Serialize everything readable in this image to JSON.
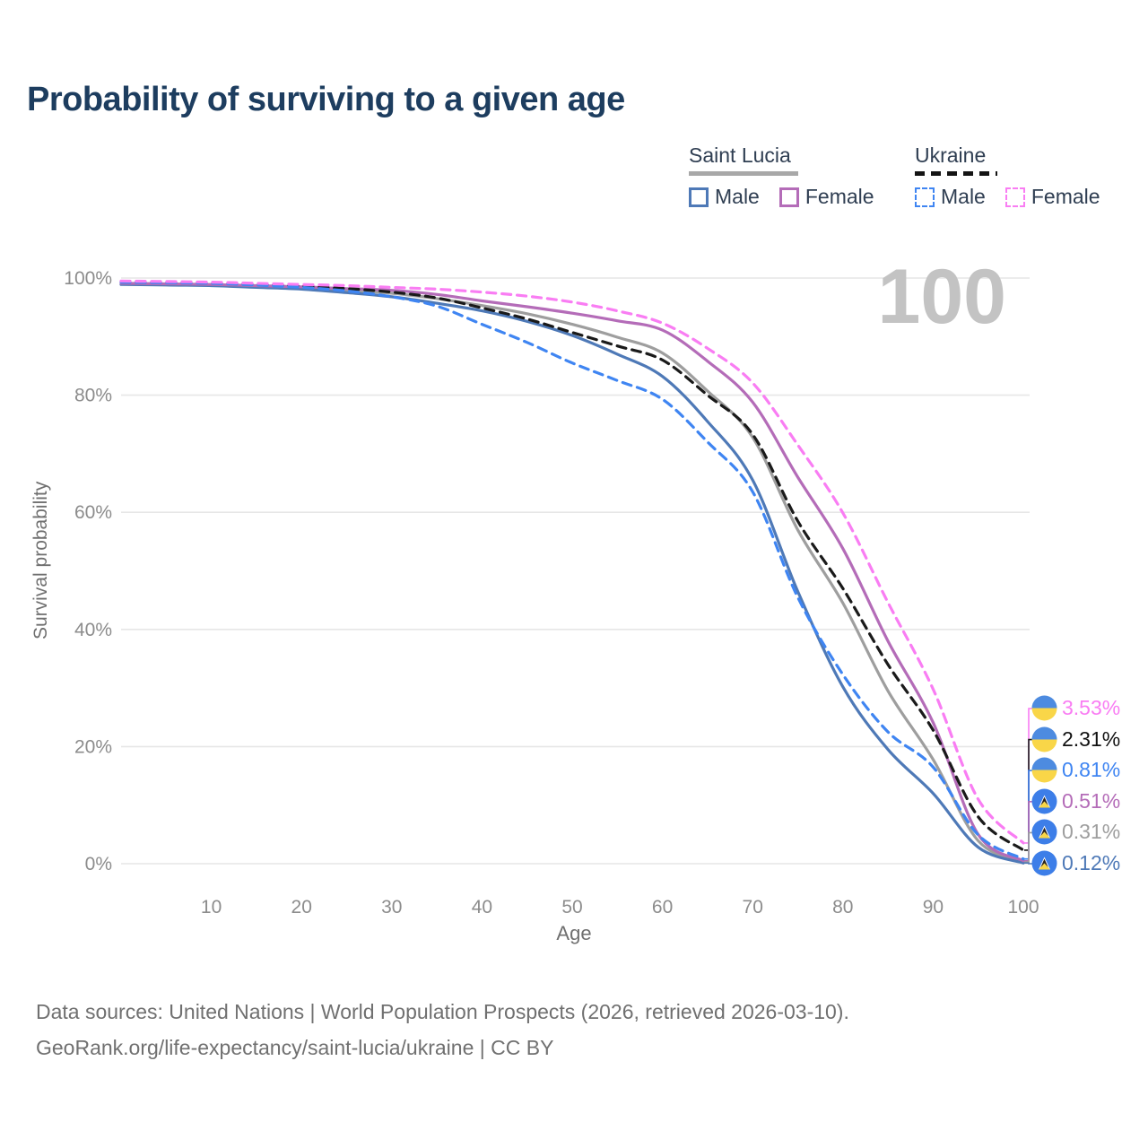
{
  "title": "Probability of surviving to a given age",
  "watermark": "100",
  "legend": {
    "groups": [
      {
        "country": "Saint Lucia",
        "style": "solid",
        "underline_color": "#a8a8a8",
        "items": [
          {
            "label": "Male",
            "color": "#4e79b7"
          },
          {
            "label": "Female",
            "color": "#b46cb8"
          }
        ]
      },
      {
        "country": "Ukraine",
        "style": "dashed",
        "underline_color": "#141414",
        "items": [
          {
            "label": "Male",
            "color": "#3f85f2"
          },
          {
            "label": "Female",
            "color": "#f97df3"
          }
        ]
      }
    ]
  },
  "axes": {
    "x": {
      "label": "Age",
      "ticks": [
        10,
        20,
        30,
        40,
        50,
        60,
        70,
        80,
        90,
        100
      ],
      "range": [
        0,
        100
      ]
    },
    "y": {
      "label": "Survival probability",
      "ticks": [
        {
          "v": 0,
          "label": "0%"
        },
        {
          "v": 20,
          "label": "20%"
        },
        {
          "v": 40,
          "label": "40%"
        },
        {
          "v": 60,
          "label": "60%"
        },
        {
          "v": 80,
          "label": "80%"
        },
        {
          "v": 100,
          "label": "100%"
        }
      ],
      "range": [
        0,
        100
      ]
    }
  },
  "chart_data": {
    "type": "line",
    "title": "Probability of surviving to a given age",
    "xlabel": "Age",
    "ylabel": "Survival probability",
    "xlim": [
      0,
      100
    ],
    "ylim": [
      0,
      100
    ],
    "grid": "horizontal-only",
    "legend_position": "top-right",
    "x": [
      0,
      5,
      10,
      15,
      20,
      25,
      30,
      35,
      40,
      45,
      50,
      55,
      60,
      65,
      70,
      75,
      80,
      85,
      90,
      95,
      100
    ],
    "series": [
      {
        "name": "Saint Lucia — All",
        "country": "Saint Lucia",
        "sex": "all",
        "style": "solid",
        "color": "#9e9e9e",
        "flag": "saint-lucia",
        "end_label": "0.31%",
        "end_value": 0.31,
        "values_pct": [
          99.0,
          98.9,
          98.8,
          98.6,
          98.3,
          97.9,
          97.4,
          96.5,
          95.3,
          93.9,
          92.1,
          89.9,
          87.2,
          80.7,
          72.8,
          57.0,
          44.5,
          29.5,
          17.8,
          3.9,
          0.31
        ]
      },
      {
        "name": "Saint Lucia — Male",
        "country": "Saint Lucia",
        "sex": "male",
        "style": "solid",
        "color": "#4e79b7",
        "flag": "saint-lucia",
        "end_label": "0.12%",
        "end_value": 0.12,
        "values_pct": [
          98.9,
          98.8,
          98.7,
          98.4,
          98.1,
          97.5,
          96.8,
          95.7,
          94.4,
          92.6,
          90.2,
          87.0,
          83.2,
          75.5,
          65.5,
          46.5,
          30.2,
          19.5,
          12.0,
          2.8,
          0.12
        ]
      },
      {
        "name": "Saint Lucia — Female",
        "country": "Saint Lucia",
        "sex": "female",
        "style": "solid",
        "color": "#b46cb8",
        "flag": "saint-lucia",
        "end_label": "0.51%",
        "end_value": 0.51,
        "values_pct": [
          99.1,
          99.0,
          98.9,
          98.7,
          98.5,
          98.2,
          97.9,
          97.2,
          96.1,
          95.1,
          94.0,
          92.7,
          91.1,
          85.8,
          78.8,
          66.0,
          53.8,
          38.0,
          24.1,
          5.0,
          0.51
        ]
      },
      {
        "name": "Ukraine — All",
        "country": "Ukraine",
        "sex": "all",
        "style": "dashed",
        "color": "#1a1a1a",
        "flag": "ukraine",
        "end_label": "2.31%",
        "end_value": 2.31,
        "values_pct": [
          99.4,
          99.3,
          99.2,
          99.0,
          98.6,
          98.2,
          97.6,
          96.6,
          94.9,
          93.0,
          90.7,
          88.4,
          86.0,
          80.0,
          73.3,
          58.5,
          47.0,
          34.0,
          22.8,
          8.0,
          2.31
        ]
      },
      {
        "name": "Ukraine — Male",
        "country": "Ukraine",
        "sex": "male",
        "style": "dashed",
        "color": "#3f85f2",
        "flag": "ukraine",
        "end_label": "0.81%",
        "end_value": 0.81,
        "values_pct": [
          99.3,
          99.2,
          99.1,
          98.8,
          98.4,
          97.8,
          96.8,
          95.2,
          92.1,
          89.0,
          85.5,
          82.5,
          79.3,
          72.0,
          63.5,
          45.5,
          32.3,
          22.5,
          16.5,
          4.9,
          0.81
        ]
      },
      {
        "name": "Ukraine — Female",
        "country": "Ukraine",
        "sex": "female",
        "style": "dashed",
        "color": "#f97df3",
        "flag": "ukraine",
        "end_label": "3.53%",
        "end_value": 3.53,
        "values_pct": [
          99.5,
          99.4,
          99.3,
          99.1,
          98.9,
          98.7,
          98.4,
          98.1,
          97.6,
          96.9,
          95.9,
          94.4,
          92.3,
          88.0,
          82.1,
          71.5,
          59.9,
          44.6,
          29.8,
          11.0,
          3.53
        ]
      }
    ],
    "flag_colors": {
      "ukraine": {
        "top": "#4d8be0",
        "bottom": "#f9d648"
      },
      "saint_lucia": {
        "bg": "#3d7ee8",
        "white": "#ffffff",
        "black": "#26221f",
        "yellow": "#f9d648"
      }
    }
  },
  "footer": {
    "line1": "Data sources: United Nations | World Population Prospects (2026, retrieved 2026-03-10).",
    "line2": "GeoRank.org/life-expectancy/saint-lucia/ukraine | CC BY"
  }
}
